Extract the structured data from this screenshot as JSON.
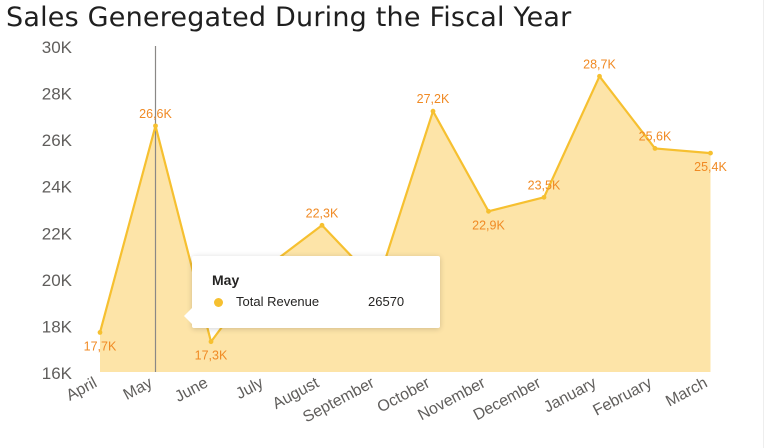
{
  "colors": {
    "area_fill": "#fde4a8",
    "line": "#f6c030",
    "label": "#f08a24",
    "axis_text": "#605e5c",
    "tooltip_dot": "#f6c030"
  },
  "tooltip": {
    "title": "May",
    "label": "Total Revenue",
    "value": "26570"
  },
  "chart_data": {
    "type": "area",
    "title": "Sales Generegated During the Fiscal Year",
    "xlabel": "",
    "ylabel": "",
    "ylim": [
      16000,
      30000
    ],
    "yticks": [
      16000,
      18000,
      20000,
      22000,
      24000,
      26000,
      28000,
      30000
    ],
    "ytick_labels": [
      "16K",
      "18K",
      "20K",
      "22K",
      "24K",
      "26K",
      "28K",
      "30K"
    ],
    "categories": [
      "April",
      "May",
      "June",
      "July",
      "August",
      "September",
      "October",
      "November",
      "December",
      "January",
      "February",
      "March"
    ],
    "series": [
      {
        "name": "Total Revenue",
        "values": [
          17700,
          26570,
          17300,
          20500,
          22300,
          19800,
          27200,
          22900,
          23500,
          28700,
          25600,
          25400
        ],
        "data_labels": [
          "17,7K",
          "26,6K",
          "17,3K",
          null,
          "22,3K",
          null,
          "27,2K",
          "22,9K",
          "23,5K",
          "28,7K",
          "25,6K",
          "25,4K"
        ]
      }
    ],
    "highlighted_category": "May"
  }
}
